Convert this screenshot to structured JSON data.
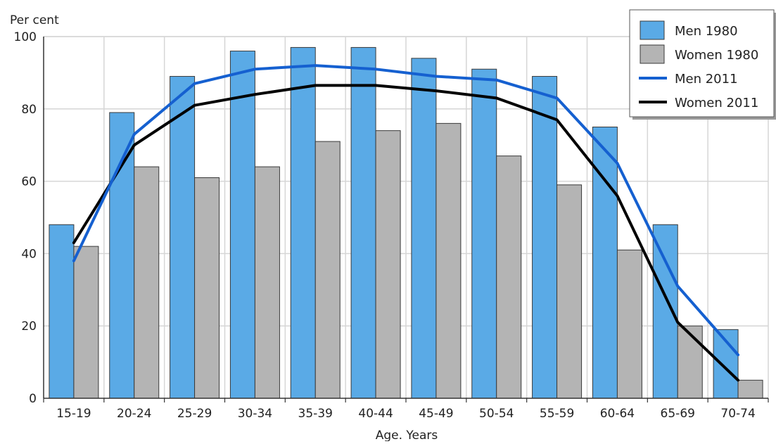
{
  "chart_data": {
    "type": "bar",
    "ylabel": "Per cent",
    "xlabel": "Age. Years",
    "ylim": [
      0,
      100
    ],
    "yticks": [
      0,
      20,
      40,
      60,
      80,
      100
    ],
    "grid": true,
    "legend_position": "top-right",
    "categories": [
      "15-19",
      "20-24",
      "25-29",
      "30-34",
      "35-39",
      "40-44",
      "45-49",
      "50-54",
      "55-59",
      "60-64",
      "65-69",
      "70-74"
    ],
    "series": [
      {
        "name": "Men 1980",
        "kind": "bar",
        "color": "#5aaae6",
        "values": [
          48,
          79,
          89,
          96,
          97,
          97,
          94,
          91,
          89,
          75,
          48,
          19
        ]
      },
      {
        "name": "Women 1980",
        "kind": "bar",
        "color": "#b4b4b4",
        "values": [
          42,
          64,
          61,
          64,
          71,
          74,
          76,
          67,
          59,
          41,
          20,
          5
        ]
      },
      {
        "name": "Men 2011",
        "kind": "line",
        "color": "#1560d0",
        "values": [
          38,
          73,
          87,
          91,
          92,
          91,
          89,
          88,
          83,
          65,
          31,
          12
        ]
      },
      {
        "name": "Women 2011",
        "kind": "line",
        "color": "#000000",
        "values": [
          43,
          70,
          81,
          84,
          86.5,
          86.5,
          85,
          83,
          77,
          56,
          21,
          5
        ]
      }
    ]
  }
}
